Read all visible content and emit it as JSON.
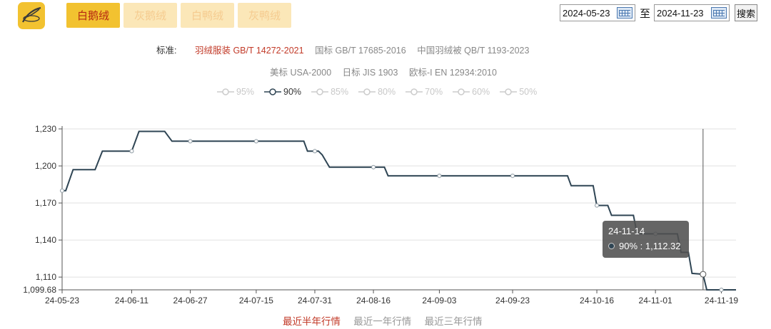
{
  "header": {
    "logo_icon": "feather-logo-icon",
    "tabs": [
      {
        "label": "白鹅绒",
        "active": true
      },
      {
        "label": "灰鹅绒",
        "active": false
      },
      {
        "label": "白鸭绒",
        "active": false
      },
      {
        "label": "灰鸭绒",
        "active": false
      }
    ],
    "date_from": "2024-05-23",
    "to_label": "至",
    "date_to": "2024-11-23",
    "search_label": "搜索"
  },
  "standards": {
    "label": "标准:",
    "row1": [
      "羽绒服装 GB/T 14272-2021",
      "国标 GB/T 17685-2016",
      "中国羽绒被 QB/T 1193-2023"
    ],
    "row2": [
      "美标 USA-2000",
      "日标 JIS 1903",
      "欧标-I EN 12934:2010"
    ],
    "active_index": 0
  },
  "legend": [
    {
      "label": "95%",
      "active": false
    },
    {
      "label": "90%",
      "active": true
    },
    {
      "label": "85%",
      "active": false
    },
    {
      "label": "80%",
      "active": false
    },
    {
      "label": "70%",
      "active": false
    },
    {
      "label": "60%",
      "active": false
    },
    {
      "label": "50%",
      "active": false
    }
  ],
  "chart_data": {
    "type": "line",
    "series": [
      {
        "name": "90%",
        "color": "#2f4554",
        "points": [
          [
            "2024-05-23",
            1180
          ],
          [
            "2024-05-24",
            1180
          ],
          [
            "2024-05-26",
            1197
          ],
          [
            "2024-06-01",
            1197
          ],
          [
            "2024-06-03",
            1212
          ],
          [
            "2024-06-11",
            1212
          ],
          [
            "2024-06-13",
            1228
          ],
          [
            "2024-06-20",
            1228
          ],
          [
            "2024-06-22",
            1220
          ],
          [
            "2024-07-28",
            1220
          ],
          [
            "2024-07-29",
            1212
          ],
          [
            "2024-08-01",
            1212
          ],
          [
            "2024-08-02",
            1209
          ],
          [
            "2024-08-04",
            1199
          ],
          [
            "2024-08-19",
            1199
          ],
          [
            "2024-08-20",
            1192
          ],
          [
            "2024-10-08",
            1192
          ],
          [
            "2024-10-09",
            1184
          ],
          [
            "2024-10-15",
            1184
          ],
          [
            "2024-10-16",
            1168
          ],
          [
            "2024-10-19",
            1168
          ],
          [
            "2024-10-20",
            1160
          ],
          [
            "2024-10-26",
            1160
          ],
          [
            "2024-10-27",
            1145
          ],
          [
            "2024-11-07",
            1145
          ],
          [
            "2024-11-08",
            1130
          ],
          [
            "2024-11-10",
            1130
          ],
          [
            "2024-11-11",
            1113
          ],
          [
            "2024-11-14",
            1112.32
          ],
          [
            "2024-11-15",
            1099.68
          ],
          [
            "2024-11-23",
            1099.68
          ]
        ],
        "markers": [
          [
            "2024-05-23",
            1180
          ],
          [
            "2024-06-11",
            1212
          ],
          [
            "2024-06-27",
            1220
          ],
          [
            "2024-07-15",
            1220
          ],
          [
            "2024-07-31",
            1212
          ],
          [
            "2024-08-16",
            1199
          ],
          [
            "2024-09-03",
            1192
          ],
          [
            "2024-09-23",
            1192
          ],
          [
            "2024-10-16",
            1168
          ],
          [
            "2024-11-01",
            1145
          ],
          [
            "2024-11-14",
            1112.32
          ],
          [
            "2024-11-19",
            1099.68
          ]
        ]
      }
    ],
    "x_ticks": [
      "24-05-23",
      "24-06-11",
      "24-06-27",
      "24-07-15",
      "24-07-31",
      "24-08-16",
      "24-09-03",
      "24-09-23",
      "24-10-16",
      "24-11-01",
      "24-11-19"
    ],
    "x_tick_dates": [
      "2024-05-23",
      "2024-06-11",
      "2024-06-27",
      "2024-07-15",
      "2024-07-31",
      "2024-08-16",
      "2024-09-03",
      "2024-09-23",
      "2024-10-16",
      "2024-11-01",
      "2024-11-19"
    ],
    "xlim": [
      "2024-05-23",
      "2024-11-23"
    ],
    "y_ticks": [
      "1,099.68",
      "1,110",
      "1,140",
      "1,170",
      "1,200",
      "1,230"
    ],
    "y_tick_values": [
      1099.68,
      1110,
      1140,
      1170,
      1200,
      1230
    ],
    "ylim": [
      1099.68,
      1230
    ],
    "grid": true,
    "tooltip": {
      "date": "24-11-14",
      "label": "90% : 1,112.32",
      "x": "2024-11-14",
      "y": 1112.32
    }
  },
  "period_links": [
    {
      "label": "最近半年行情",
      "active": true
    },
    {
      "label": "最近一年行情",
      "active": false
    },
    {
      "label": "最近三年行情",
      "active": false
    }
  ]
}
